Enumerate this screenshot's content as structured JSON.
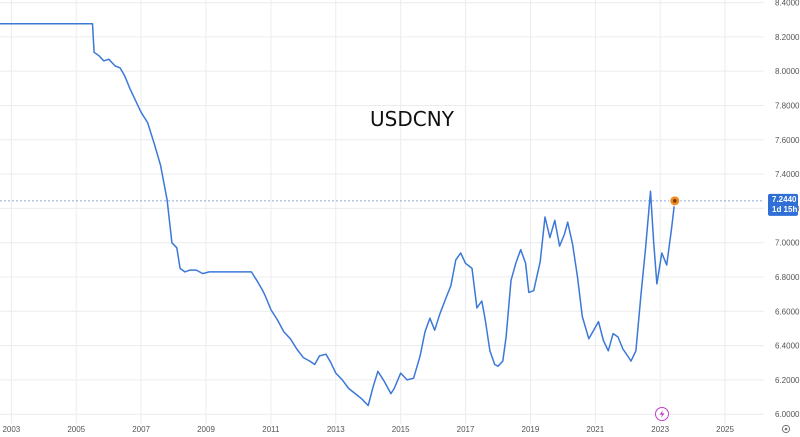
{
  "chart_data": {
    "type": "line",
    "title": "USDCNY",
    "xlabel": "",
    "ylabel": "",
    "xlim": [
      2002.65,
      2026.2
    ],
    "ylim": [
      5.943,
      8.415
    ],
    "x_ticks": [
      "2003",
      "2005",
      "2007",
      "2009",
      "2011",
      "2013",
      "2015",
      "2017",
      "2019",
      "2021",
      "2023",
      "2025"
    ],
    "y_ticks": [
      "8.4000",
      "8.2000",
      "8.0000",
      "7.8000",
      "7.6000",
      "7.4000",
      "7.2000",
      "7.0000",
      "6.8000",
      "6.6000",
      "6.4000",
      "6.2000",
      "6.0000"
    ],
    "last_value_label": "7.2440",
    "countdown_label": "1d 15h",
    "grid": true,
    "colors": {
      "line": "#3b78d8",
      "badge": "#2f6fd6",
      "marker": "#f08a24",
      "grid": "#ececec"
    },
    "series": [
      {
        "x": [
          2002.65,
          2003.0,
          2004.0,
          2005.0,
          2005.5,
          2005.55,
          2005.7,
          2005.85,
          2006.0,
          2006.2,
          2006.35,
          2006.5,
          2006.65,
          2006.8,
          2007.0,
          2007.2,
          2007.4,
          2007.6,
          2007.8,
          2007.95,
          2008.1,
          2008.2,
          2008.35,
          2008.5,
          2008.7,
          2008.9,
          2009.1,
          2009.3,
          2009.6,
          2010.0,
          2010.4,
          2010.6,
          2010.75,
          2010.85,
          2011.0,
          2011.2,
          2011.4,
          2011.6,
          2011.8,
          2012.0,
          2012.2,
          2012.35,
          2012.5,
          2012.7,
          2012.85,
          2013.0,
          2013.2,
          2013.4,
          2013.6,
          2013.8,
          2014.0,
          2014.15,
          2014.3,
          2014.5,
          2014.7,
          2014.8,
          2015.0,
          2015.2,
          2015.4,
          2015.6,
          2015.75,
          2015.9,
          2016.05,
          2016.2,
          2016.4,
          2016.55,
          2016.7,
          2016.85,
          2017.0,
          2017.2,
          2017.35,
          2017.5,
          2017.6,
          2017.75,
          2017.9,
          2018.0,
          2018.15,
          2018.25,
          2018.4,
          2018.55,
          2018.7,
          2018.85,
          2018.95,
          2019.1,
          2019.3,
          2019.45,
          2019.6,
          2019.75,
          2019.9,
          2020.05,
          2020.15,
          2020.3,
          2020.45,
          2020.6,
          2020.8,
          2020.95,
          2021.1,
          2021.25,
          2021.4,
          2021.55,
          2021.7,
          2021.85,
          2022.0,
          2022.1,
          2022.25,
          2022.4,
          2022.55,
          2022.7,
          2022.8,
          2022.9,
          2023.05,
          2023.2,
          2023.35,
          2023.45
        ],
        "y": [
          8.277,
          8.277,
          8.277,
          8.277,
          8.277,
          8.11,
          8.09,
          8.06,
          8.07,
          8.03,
          8.02,
          7.97,
          7.9,
          7.84,
          7.76,
          7.7,
          7.58,
          7.45,
          7.25,
          7.0,
          6.97,
          6.85,
          6.83,
          6.84,
          6.84,
          6.82,
          6.83,
          6.83,
          6.83,
          6.83,
          6.83,
          6.77,
          6.72,
          6.68,
          6.61,
          6.55,
          6.48,
          6.44,
          6.38,
          6.33,
          6.31,
          6.29,
          6.34,
          6.35,
          6.3,
          6.24,
          6.2,
          6.15,
          6.12,
          6.09,
          6.05,
          6.16,
          6.25,
          6.19,
          6.12,
          6.15,
          6.24,
          6.2,
          6.21,
          6.34,
          6.48,
          6.56,
          6.49,
          6.58,
          6.68,
          6.75,
          6.9,
          6.94,
          6.88,
          6.85,
          6.62,
          6.66,
          6.56,
          6.37,
          6.29,
          6.28,
          6.31,
          6.45,
          6.78,
          6.88,
          6.96,
          6.88,
          6.71,
          6.72,
          6.89,
          7.15,
          7.03,
          7.13,
          6.98,
          7.05,
          7.12,
          6.99,
          6.8,
          6.57,
          6.44,
          6.49,
          6.54,
          6.43,
          6.37,
          6.47,
          6.45,
          6.38,
          6.34,
          6.31,
          6.37,
          6.68,
          6.97,
          7.3,
          7.0,
          6.76,
          6.94,
          6.87,
          7.08,
          7.244
        ]
      }
    ]
  }
}
